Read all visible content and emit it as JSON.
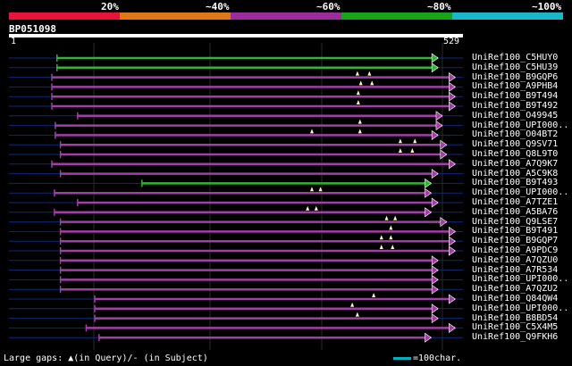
{
  "legend": {
    "labels": [
      "20%",
      "~40%",
      "~60%",
      "~80%",
      "~100%"
    ],
    "colors": [
      "#e8133a",
      "#e07818",
      "#9a2ca0",
      "#18a418",
      "#18b8c8"
    ]
  },
  "query": {
    "title": "BP051098",
    "start": "1",
    "end": "529"
  },
  "colors": {
    "magenta": "#a23fa6",
    "green": "#33b233",
    "gap": "#000e4a",
    "query_line": "#0a2a7a",
    "triangle": "#fff8c0"
  },
  "hits": [
    {
      "id": "UniRef100_C5HUY0",
      "start": 56,
      "end": 500,
      "color": "green",
      "tris": []
    },
    {
      "id": "UniRef100_C5HU39",
      "start": 56,
      "end": 500,
      "color": "green",
      "tris": []
    },
    {
      "id": "UniRef100_B9GQP6",
      "start": 50,
      "end": 520,
      "color": "magenta",
      "tris": [
        406,
        420
      ]
    },
    {
      "id": "UniRef100_A9PHB4",
      "start": 50,
      "end": 520,
      "color": "magenta",
      "tris": [
        410,
        423
      ]
    },
    {
      "id": "UniRef100_B9T494",
      "start": 50,
      "end": 520,
      "color": "magenta",
      "tris": [
        407
      ]
    },
    {
      "id": "UniRef100_B9T492",
      "start": 50,
      "end": 520,
      "color": "magenta",
      "tris": [
        407
      ]
    },
    {
      "id": "UniRef100_O49945",
      "start": 80,
      "end": 505,
      "color": "magenta",
      "tris": []
    },
    {
      "id": "UniRef100_UPI000..",
      "start": 54,
      "end": 505,
      "color": "magenta",
      "tris": [
        409
      ]
    },
    {
      "id": "UniRef100_O04BT2",
      "start": 54,
      "end": 500,
      "color": "magenta",
      "tris": [
        353,
        409
      ]
    },
    {
      "id": "UniRef100_Q9SV71",
      "start": 60,
      "end": 510,
      "color": "magenta",
      "tris": [
        456,
        473
      ]
    },
    {
      "id": "UniRef100_Q8L9T0",
      "start": 60,
      "end": 510,
      "color": "magenta",
      "tris": [
        456,
        470
      ]
    },
    {
      "id": "UniRef100_A7Q9K7",
      "start": 50,
      "end": 520,
      "color": "magenta",
      "tris": []
    },
    {
      "id": "UniRef100_A5C9K8",
      "start": 60,
      "end": 500,
      "color": "magenta",
      "tris": []
    },
    {
      "id": "UniRef100_B9T493",
      "start": 155,
      "end": 492,
      "color": "green",
      "tris": []
    },
    {
      "id": "UniRef100_UPI000..",
      "start": 53,
      "end": 492,
      "color": "magenta",
      "tris": [
        353,
        363
      ]
    },
    {
      "id": "UniRef100_A7TZE1",
      "start": 80,
      "end": 500,
      "color": "magenta",
      "tris": []
    },
    {
      "id": "UniRef100_A5BA76",
      "start": 53,
      "end": 492,
      "color": "magenta",
      "tris": [
        348,
        358
      ]
    },
    {
      "id": "UniRef100_Q9LSE7",
      "start": 60,
      "end": 510,
      "color": "magenta",
      "tris": [
        440,
        450
      ]
    },
    {
      "id": "UniRef100_B9T491",
      "start": 60,
      "end": 520,
      "color": "magenta",
      "tris": [
        445
      ]
    },
    {
      "id": "UniRef100_B9GQP7",
      "start": 60,
      "end": 520,
      "color": "magenta",
      "tris": [
        434,
        445
      ]
    },
    {
      "id": "UniRef100_A9PDC9",
      "start": 60,
      "end": 520,
      "color": "magenta",
      "tris": [
        434,
        447
      ]
    },
    {
      "id": "UniRef100_A7QZU0",
      "start": 60,
      "end": 500,
      "color": "magenta",
      "tris": []
    },
    {
      "id": "UniRef100_A7R534",
      "start": 60,
      "end": 500,
      "color": "magenta",
      "tris": []
    },
    {
      "id": "UniRef100_UPI000..",
      "start": 60,
      "end": 500,
      "color": "magenta",
      "tris": []
    },
    {
      "id": "UniRef100_A7QZU2",
      "start": 60,
      "end": 500,
      "color": "magenta",
      "tris": []
    },
    {
      "id": "UniRef100_Q84QW4",
      "start": 100,
      "end": 520,
      "color": "magenta",
      "tris": [
        425
      ]
    },
    {
      "id": "UniRef100_UPI000..",
      "start": 100,
      "end": 500,
      "color": "magenta",
      "tris": [
        400
      ]
    },
    {
      "id": "UniRef100_B8BD54",
      "start": 100,
      "end": 500,
      "color": "magenta",
      "tris": [
        406
      ]
    },
    {
      "id": "UniRef100_C5X4M5",
      "start": 90,
      "end": 520,
      "color": "magenta",
      "tris": []
    },
    {
      "id": "UniRef100_Q9FKH6",
      "start": 105,
      "end": 492,
      "color": "magenta",
      "tris": []
    }
  ],
  "footer": {
    "large_gaps": "Large gaps: ▲(in Query)/- (in Subject)",
    "scale": "=100char."
  }
}
